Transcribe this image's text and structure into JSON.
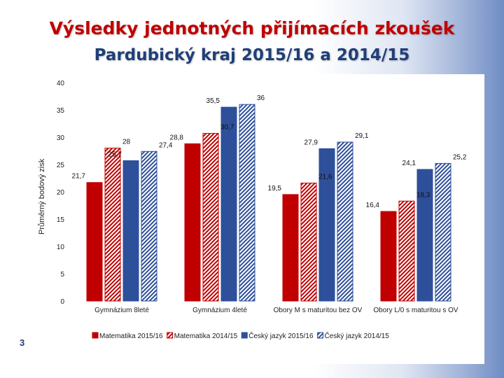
{
  "title": "Výsledky jednotných přijímacích zkoušek",
  "subtitle": "Pardubický kraj 2015/16 a 2014/15",
  "page_number": "3",
  "colors": {
    "red": "#c00000",
    "blue": "#2e4f9a",
    "title_red": "#c00000",
    "title_blue": "#1f3f78"
  },
  "chart_data": {
    "type": "bar",
    "ylabel": "Průměrný bodový zisk",
    "xlabel": "",
    "ylim": [
      0,
      40
    ],
    "yticks": [
      0,
      5,
      10,
      15,
      20,
      25,
      30,
      35,
      40
    ],
    "grid": false,
    "legend": "bottom",
    "categories": [
      "Gymnázium 8leté",
      "Gymnázium 4leté",
      "Obory M s maturitou bez OV",
      "Obory L/0 s maturitou s OV"
    ],
    "series": [
      {
        "name": "Matematika  2015/16",
        "values": [
          21.7,
          28.8,
          19.5,
          16.4
        ],
        "labels": [
          "21,7",
          "28,8",
          "19,5",
          "16,4"
        ],
        "color": "#c00000",
        "pattern": "solid"
      },
      {
        "name": "Matematika 2014/15",
        "values": [
          28,
          30.7,
          21.6,
          18.3
        ],
        "labels": [
          "28",
          "30,7",
          "21,6",
          "18,3"
        ],
        "color": "#c00000",
        "pattern": "hatched"
      },
      {
        "name": "Český jazyk 2015/16",
        "values": [
          25.7,
          35.5,
          27.9,
          24.1
        ],
        "labels": [
          "25,7",
          "35,5",
          "27,9",
          "24,1"
        ],
        "color": "#2e4f9a",
        "pattern": "solid"
      },
      {
        "name": "Český jazyk 2014/15",
        "values": [
          27.4,
          36,
          29.1,
          25.2
        ],
        "labels": [
          "27,4",
          "36",
          "29,1",
          "25,2"
        ],
        "color": "#2e4f9a",
        "pattern": "hatched"
      }
    ]
  }
}
